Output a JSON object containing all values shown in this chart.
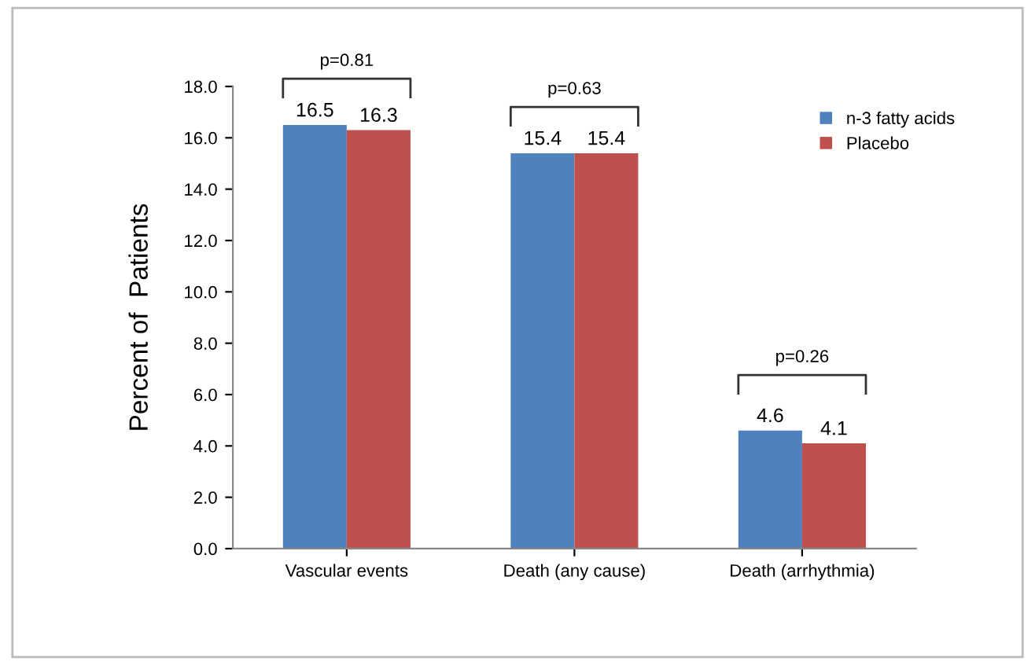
{
  "chart_data": {
    "type": "bar",
    "ylabel": "Percent of  Patients",
    "categories": [
      "Vascular events",
      "Death (any cause)",
      "Death (arrhythmia)"
    ],
    "series": [
      {
        "name": "n-3 fatty acids",
        "color": "#4f81bd",
        "values": [
          16.5,
          15.4,
          4.6
        ]
      },
      {
        "name": "Placebo",
        "color": "#c0504d",
        "values": [
          16.3,
          15.4,
          4.1
        ]
      }
    ],
    "ylim": [
      0,
      18
    ],
    "yticks": [
      {
        "value": 0,
        "label": "0.0"
      },
      {
        "value": 2,
        "label": "2.0"
      },
      {
        "value": 4,
        "label": "4.0"
      },
      {
        "value": 6,
        "label": "6.0"
      },
      {
        "value": 8,
        "label": "8.0"
      },
      {
        "value": 10,
        "label": "10.0"
      },
      {
        "value": 12,
        "label": "12.0"
      },
      {
        "value": 14,
        "label": "14.0"
      },
      {
        "value": 16,
        "label": "16.0"
      },
      {
        "value": 18,
        "label": "18.0"
      }
    ],
    "data_labels": true,
    "grid": false,
    "legend": "top right",
    "annotations": [
      "p=0.81",
      "p=0.63",
      "p=0.26"
    ]
  }
}
